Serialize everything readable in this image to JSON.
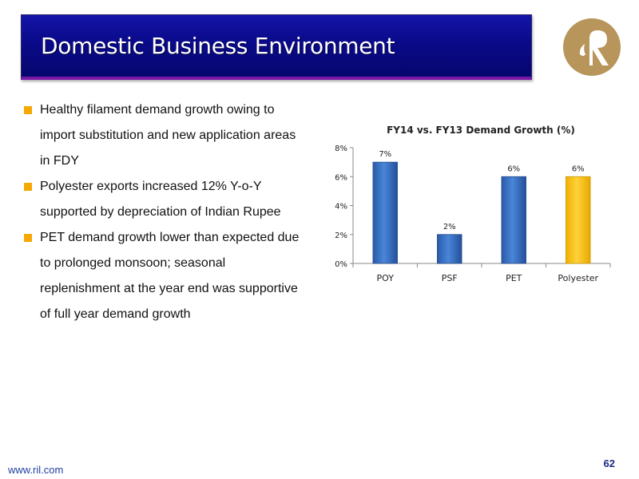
{
  "header": {
    "title": "Domestic Business Environment"
  },
  "logo": {
    "icon": "reliance-logo-icon",
    "color": "#b8955a"
  },
  "bullets": [
    "Healthy filament demand growth owing to import substitution and new application areas in FDY",
    "Polyester exports increased 12% Y-o-Y supported by depreciation of Indian Rupee",
    "PET demand growth lower than expected due to prolonged monsoon; seasonal replenishment at the year end was supportive of full year demand growth"
  ],
  "chart_data": {
    "type": "bar",
    "title": "FY14 vs. FY13 Demand Growth (%)",
    "categories": [
      "POY",
      "PSF",
      "PET",
      "Polyester"
    ],
    "values": [
      7,
      2,
      6,
      6
    ],
    "data_labels": [
      "7%",
      "2%",
      "6%",
      "6%"
    ],
    "ylim": [
      0,
      8
    ],
    "yticks": [
      0,
      2,
      4,
      6,
      8
    ],
    "ytick_labels": [
      "0%",
      "2%",
      "4%",
      "6%",
      "8%"
    ],
    "xlabel": "",
    "ylabel": "",
    "grid": false,
    "colors": [
      "#3a72c4",
      "#3a72c4",
      "#3a72c4",
      "#ffc000"
    ]
  },
  "footer": {
    "url": "www.ril.com",
    "page": "62"
  }
}
